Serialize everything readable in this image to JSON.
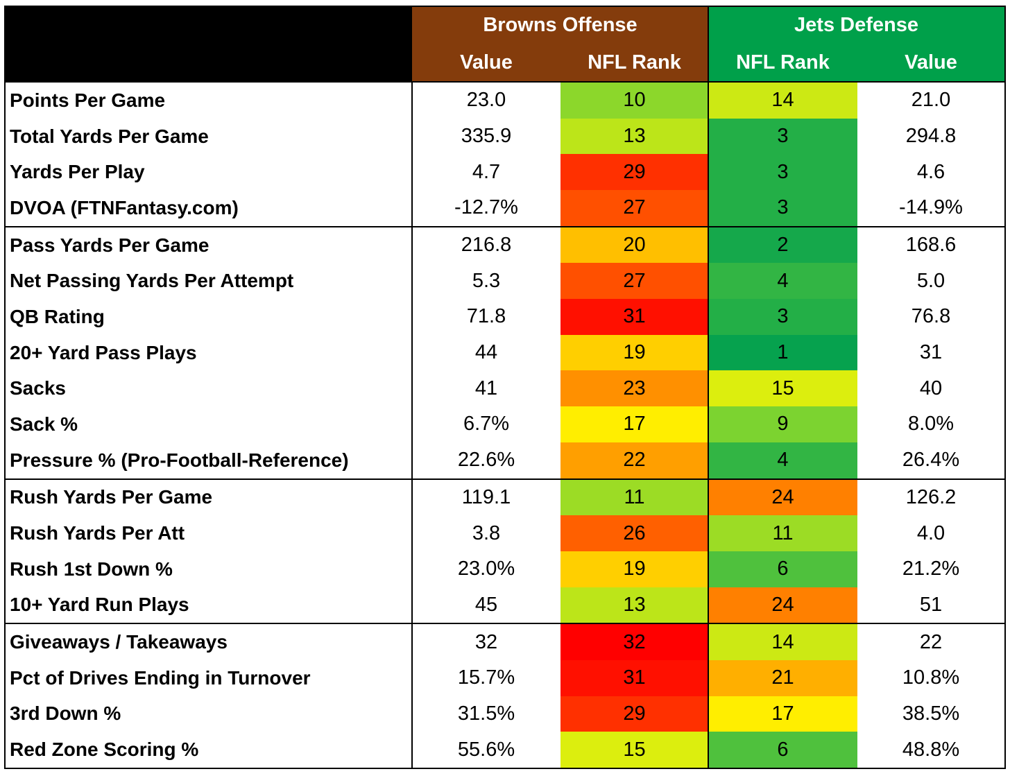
{
  "table": {
    "groups": [
      {
        "title": "Browns Offense",
        "color": "#843c0c",
        "columns": [
          "Value",
          "NFL Rank"
        ]
      },
      {
        "title": "Jets Defense",
        "color": "#00a04a",
        "columns": [
          "NFL Rank",
          "Value"
        ]
      }
    ],
    "sections": [
      [
        [
          "Points Per Game",
          "23.0",
          10,
          14,
          "21.0"
        ],
        [
          "Total Yards Per Game",
          "335.9",
          13,
          3,
          "294.8"
        ],
        [
          "Yards Per Play",
          "4.7",
          29,
          3,
          "4.6"
        ],
        [
          "DVOA (FTNFantasy.com)",
          "-12.7%",
          27,
          3,
          "-14.9%"
        ]
      ],
      [
        [
          "Pass Yards Per Game",
          "216.8",
          20,
          2,
          "168.6"
        ],
        [
          "Net Passing Yards Per Attempt",
          "5.3",
          27,
          4,
          "5.0"
        ],
        [
          "QB Rating",
          "71.8",
          31,
          3,
          "76.8"
        ],
        [
          "20+ Yard Pass Plays",
          "44",
          19,
          1,
          "31"
        ],
        [
          "Sacks",
          "41",
          23,
          15,
          "40"
        ],
        [
          "Sack %",
          "6.7%",
          17,
          9,
          "8.0%"
        ],
        [
          "Pressure % (Pro-Football-Reference)",
          "22.6%",
          22,
          4,
          "26.4%"
        ]
      ],
      [
        [
          "Rush Yards Per Game",
          "119.1",
          11,
          24,
          "126.2"
        ],
        [
          "Rush Yards Per Att",
          "3.8",
          26,
          11,
          "4.0"
        ],
        [
          "Rush 1st Down %",
          "23.0%",
          19,
          6,
          "21.2%"
        ],
        [
          "10+ Yard Run Plays",
          "45",
          13,
          24,
          "51"
        ]
      ],
      [
        [
          "Giveaways / Takeaways",
          "32",
          32,
          14,
          "22"
        ],
        [
          "Pct of Drives Ending in Turnover",
          "15.7%",
          31,
          21,
          "10.8%"
        ],
        [
          "3rd Down %",
          "31.5%",
          29,
          17,
          "38.5%"
        ],
        [
          "Red Zone Scoring %",
          "55.6%",
          15,
          6,
          "48.8%"
        ]
      ]
    ]
  }
}
